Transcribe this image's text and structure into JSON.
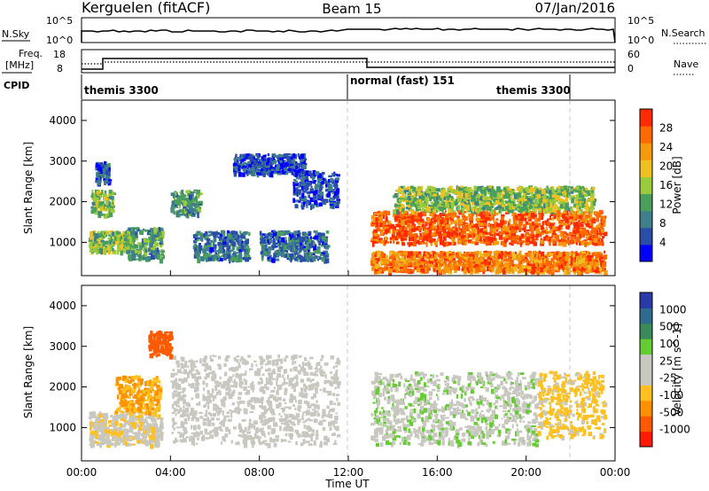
{
  "header": {
    "station": "Kerguelen (fitACF)",
    "beam": "Beam 15",
    "date": "07/Jan/2016"
  },
  "panels": {
    "nsky": {
      "label": "N.Sky",
      "ticks": [
        "10^5",
        "10^0"
      ]
    },
    "nsearch": {
      "label": "N.Search",
      "ticks": [
        "10^5",
        "10^0"
      ]
    },
    "freq": {
      "label_line1": "Freq.",
      "label_line2": "[MHz]",
      "ticks": [
        "18",
        "8"
      ]
    },
    "nave": {
      "label": "Nave",
      "ticks": [
        "60",
        "0"
      ]
    },
    "cpid": {
      "label": "CPID",
      "modes": [
        "themis 3300",
        "normal (fast) 151",
        "themis 3300"
      ]
    }
  },
  "colors": {
    "power_scale": [
      "#0000ff",
      "#2a4ea8",
      "#3f7f8c",
      "#4aa05a",
      "#9acb3c",
      "#f0c020",
      "#f59a0a",
      "#ff6a00",
      "#ff2a00"
    ],
    "velocity_scale": [
      "#2a3aa8",
      "#2f6b8f",
      "#3a8a5a",
      "#66cc33",
      "#c8c8c0",
      "#c8c8c0",
      "#ffc020",
      "#ff9000",
      "#ff5a00",
      "#ff1a00"
    ],
    "ground_scatter": "#c0c0b8",
    "guide_line": "#c8c8c8"
  },
  "chart_data": [
    {
      "type": "heatmap",
      "title": "",
      "xlabel": "Time UT",
      "ylabel": "Slant Range [km]",
      "x_ticks": [
        "00:00",
        "04:00",
        "08:00",
        "12:00",
        "16:00",
        "20:00",
        "00:00"
      ],
      "y_ticks": [
        "1000",
        "2000",
        "3000",
        "4000"
      ],
      "xlim": [
        0,
        24
      ],
      "ylim": [
        180,
        4500
      ],
      "colorbar": {
        "label": "Power [dB]",
        "ticks": [
          "4",
          "8",
          "12",
          "16",
          "20",
          "24",
          "28"
        ],
        "range": [
          0,
          30
        ]
      },
      "series": [
        {
          "x0": 0.3,
          "x1": 2.3,
          "y0": 800,
          "y1": 1300,
          "value": 14
        },
        {
          "x0": 0.4,
          "x1": 1.4,
          "y0": 1700,
          "y1": 2300,
          "value": 14
        },
        {
          "x0": 0.6,
          "x1": 1.2,
          "y0": 2500,
          "y1": 3000,
          "value": 6
        },
        {
          "x0": 2.0,
          "x1": 3.6,
          "y0": 600,
          "y1": 1400,
          "value": 11
        },
        {
          "x0": 4.0,
          "x1": 5.3,
          "y0": 1700,
          "y1": 2300,
          "value": 10
        },
        {
          "x0": 5.0,
          "x1": 7.5,
          "y0": 600,
          "y1": 1300,
          "value": 8
        },
        {
          "x0": 6.8,
          "x1": 10.0,
          "y0": 2700,
          "y1": 3200,
          "value": 5
        },
        {
          "x0": 8.0,
          "x1": 11.0,
          "y0": 600,
          "y1": 1300,
          "value": 7
        },
        {
          "x0": 9.5,
          "x1": 11.5,
          "y0": 1900,
          "y1": 2800,
          "value": 5
        },
        {
          "x0": 13.0,
          "x1": 23.5,
          "y0": 300,
          "y1": 800,
          "value": 24
        },
        {
          "x0": 13.0,
          "x1": 23.5,
          "y0": 1000,
          "y1": 1800,
          "value": 26
        },
        {
          "x0": 14.0,
          "x1": 23.0,
          "y0": 1800,
          "y1": 2400,
          "value": 14
        }
      ]
    },
    {
      "type": "heatmap",
      "title": "",
      "xlabel": "Time UT",
      "ylabel": "Slant Range [km]",
      "x_ticks": [
        "00:00",
        "04:00",
        "08:00",
        "12:00",
        "16:00",
        "20:00",
        "00:00"
      ],
      "y_ticks": [
        "1000",
        "2000",
        "3000",
        "4000"
      ],
      "xlim": [
        0,
        24
      ],
      "ylim": [
        180,
        4500
      ],
      "colorbar": {
        "label": "Velocity [m s^-1]",
        "ticks": [
          "1000",
          "500",
          "100",
          "25",
          "-25",
          "-100",
          "-500",
          "-1000"
        ],
        "range": [
          -1000,
          1000
        ]
      },
      "series": [
        {
          "x0": 0.3,
          "x1": 3.6,
          "y0": 600,
          "y1": 1400,
          "value": -150
        },
        {
          "x0": 1.5,
          "x1": 3.5,
          "y0": 1400,
          "y1": 2300,
          "value": -400
        },
        {
          "x0": 3.0,
          "x1": 4.0,
          "y0": 2800,
          "y1": 3400,
          "value": -700
        },
        {
          "x0": 4.0,
          "x1": 11.5,
          "y0": 600,
          "y1": 2800,
          "value": 0
        },
        {
          "x0": 13.0,
          "x1": 20.5,
          "y0": 600,
          "y1": 2400,
          "value": 150
        },
        {
          "x0": 20.5,
          "x1": 23.5,
          "y0": 800,
          "y1": 2400,
          "value": -250
        }
      ]
    }
  ]
}
